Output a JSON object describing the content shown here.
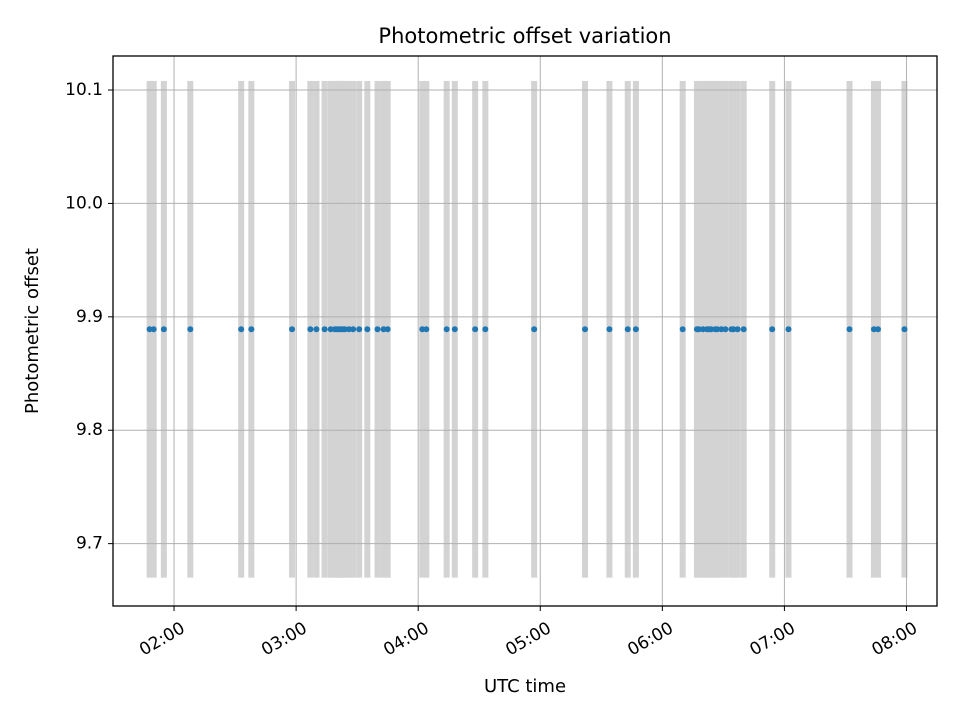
{
  "chart_data": {
    "type": "scatter",
    "title": "Photometric offset variation",
    "xlabel": "UTC time",
    "ylabel": "Photometric offset",
    "xlim": [
      "01:30",
      "08:15"
    ],
    "ylim": [
      9.645,
      10.13
    ],
    "x_ticks": [
      "02:00",
      "03:00",
      "04:00",
      "05:00",
      "06:00",
      "07:00",
      "08:00"
    ],
    "y_ticks": [
      "9.7",
      "9.8",
      "9.9",
      "10.0",
      "10.1"
    ],
    "y_tick_values": [
      9.7,
      9.8,
      9.9,
      10.0,
      10.1
    ],
    "grid": true,
    "band_range": [
      9.67,
      10.108
    ],
    "series": [
      {
        "color": "#1f77b4",
        "x": [
          "01:48",
          "01:50",
          "01:55",
          "02:08",
          "02:33",
          "02:38",
          "02:58",
          "03:07",
          "03:10",
          "03:14",
          "03:17",
          "03:19",
          "03:20",
          "03:21",
          "03:22",
          "03:23",
          "03:24",
          "03:26",
          "03:28",
          "03:31",
          "03:35",
          "03:40",
          "03:43",
          "03:45",
          "04:02",
          "04:04",
          "04:14",
          "04:18",
          "04:28",
          "04:33",
          "04:57",
          "05:22",
          "05:34",
          "05:43",
          "05:47",
          "06:10",
          "06:17",
          "06:18",
          "06:20",
          "06:22",
          "06:23",
          "06:24",
          "06:26",
          "06:27",
          "06:29",
          "06:31",
          "06:34",
          "06:35",
          "06:37",
          "06:40",
          "06:54",
          "07:02",
          "07:32",
          "07:44",
          "07:46",
          "07:59"
        ],
        "y": [
          9.889,
          9.889,
          9.889,
          9.889,
          9.889,
          9.889,
          9.889,
          9.889,
          9.889,
          9.889,
          9.889,
          9.889,
          9.889,
          9.889,
          9.889,
          9.889,
          9.889,
          9.889,
          9.889,
          9.889,
          9.889,
          9.889,
          9.889,
          9.889,
          9.889,
          9.889,
          9.889,
          9.889,
          9.889,
          9.889,
          9.889,
          9.889,
          9.889,
          9.889,
          9.889,
          9.889,
          9.889,
          9.889,
          9.889,
          9.889,
          9.889,
          9.889,
          9.889,
          9.889,
          9.889,
          9.889,
          9.889,
          9.889,
          9.889,
          9.889,
          9.889,
          9.889,
          9.889,
          9.889,
          9.889,
          9.889
        ]
      }
    ]
  },
  "colors": {
    "band": "#d3d3d3",
    "grid": "#b0b0b0",
    "axis": "#000000",
    "point": "#1f77b4"
  }
}
